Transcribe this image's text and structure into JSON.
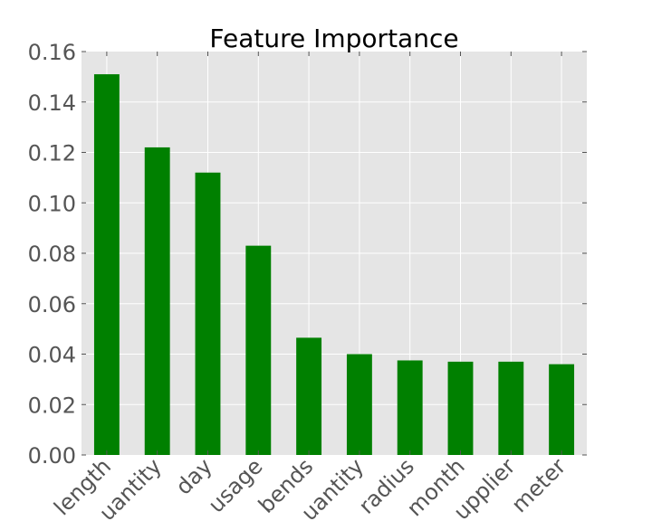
{
  "chart_data": {
    "type": "bar",
    "title": "Feature Importance",
    "xlabel": "",
    "ylabel": "",
    "categories": [
      "length",
      "uantity",
      "day",
      "usage",
      "bends",
      "uantity",
      "radius",
      "month",
      "upplier",
      "meter"
    ],
    "values": [
      0.151,
      0.122,
      0.112,
      0.083,
      0.0465,
      0.04,
      0.0375,
      0.037,
      0.037,
      0.036
    ],
    "ylim": [
      0,
      0.16
    ],
    "yticks": [
      "0.00",
      "0.02",
      "0.04",
      "0.06",
      "0.08",
      "0.10",
      "0.12",
      "0.14",
      "0.16"
    ],
    "grid": true,
    "legend": "none"
  },
  "colors": {
    "bar": "#008000",
    "plot_background": "#e5e5e5",
    "grid": "#ffffff",
    "tick_label": "#555555"
  }
}
